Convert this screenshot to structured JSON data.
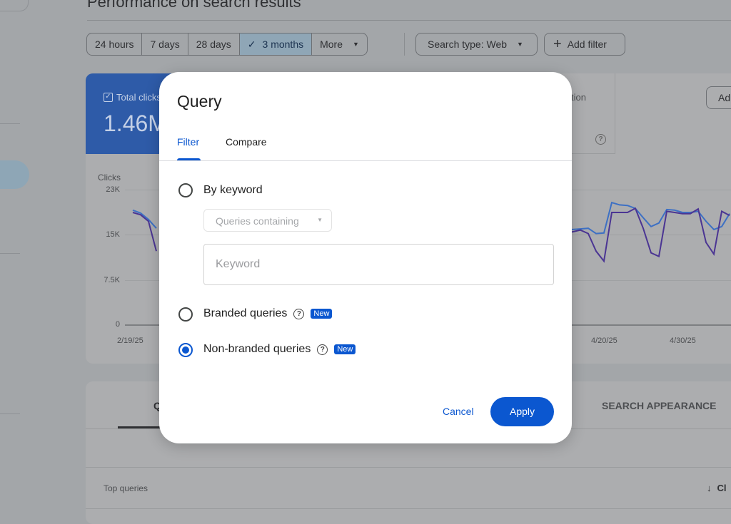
{
  "page": {
    "title": "Performance on search results"
  },
  "date_range": {
    "options": [
      "24 hours",
      "7 days",
      "28 days",
      "3 months",
      "More"
    ],
    "selected": "3 months"
  },
  "search_type": "Search type: Web",
  "add_filter": "Add filter",
  "metrics": {
    "total_clicks_label": "Total clicks",
    "total_clicks_value": "1.46M",
    "position_label_partial": "tion",
    "right_button_partial": "Ad"
  },
  "chart_data": {
    "type": "line",
    "ylabel": "Clicks",
    "yticks": [
      "23K",
      "15K",
      "7.5K",
      "0"
    ],
    "ylim": [
      0,
      23000
    ],
    "xticks": [
      "2/19/25",
      "4/20/25",
      "4/30/25"
    ],
    "grid": true,
    "series": [
      {
        "color": "#3d70c4",
        "points": [
          [
            "2025-02-19",
            19500
          ],
          [
            "2025-02-20",
            19000
          ],
          [
            "2025-02-21",
            17900
          ],
          [
            "2025-02-22",
            16400
          ],
          null,
          [
            "2025-04-15",
            15900
          ],
          [
            "2025-04-16",
            16200
          ],
          [
            "2025-04-17",
            16300
          ],
          [
            "2025-04-18",
            16400
          ],
          [
            "2025-04-19",
            15500
          ],
          [
            "2025-04-20",
            15600
          ],
          [
            "2025-04-21",
            20800
          ],
          [
            "2025-04-22",
            20400
          ],
          [
            "2025-04-23",
            20300
          ],
          [
            "2025-04-24",
            19800
          ],
          [
            "2025-04-25",
            18200
          ],
          [
            "2025-04-26",
            16700
          ],
          [
            "2025-04-27",
            17300
          ],
          [
            "2025-04-28",
            19600
          ],
          [
            "2025-04-29",
            19500
          ],
          [
            "2025-04-30",
            19100
          ],
          [
            "2025-05-01",
            19100
          ],
          [
            "2025-05-02",
            19300
          ],
          [
            "2025-05-03",
            17600
          ],
          [
            "2025-05-04",
            16200
          ],
          [
            "2025-05-05",
            16700
          ],
          [
            "2025-05-06",
            18900
          ]
        ]
      },
      {
        "color": "#4b3593",
        "points": [
          [
            "2025-02-19",
            19100
          ],
          [
            "2025-02-20",
            18700
          ],
          [
            "2025-02-21",
            17600
          ],
          [
            "2025-02-22",
            12500
          ],
          null,
          [
            "2025-04-15",
            15800
          ],
          [
            "2025-04-16",
            15800
          ],
          [
            "2025-04-17",
            16100
          ],
          [
            "2025-04-18",
            15500
          ],
          [
            "2025-04-19",
            12500
          ],
          [
            "2025-04-20",
            10800
          ],
          [
            "2025-04-21",
            19100
          ],
          [
            "2025-04-22",
            19100
          ],
          [
            "2025-04-23",
            19100
          ],
          [
            "2025-04-24",
            19800
          ],
          [
            "2025-04-25",
            16400
          ],
          [
            "2025-04-26",
            12200
          ],
          [
            "2025-04-27",
            11600
          ],
          [
            "2025-04-28",
            19300
          ],
          [
            "2025-04-29",
            19100
          ],
          [
            "2025-04-30",
            18900
          ],
          [
            "2025-05-01",
            18900
          ],
          [
            "2025-05-02",
            19700
          ],
          [
            "2025-05-03",
            14000
          ],
          [
            "2025-05-04",
            12000
          ],
          [
            "2025-05-05",
            19300
          ],
          [
            "2025-05-06",
            18600
          ]
        ]
      }
    ]
  },
  "table": {
    "tab_partial": "Q",
    "tab_search_appearance": "SEARCH APPEARANCE",
    "top_queries": "Top queries",
    "sort_partial": "Cl"
  },
  "dialog": {
    "title": "Query",
    "tabs": [
      "Filter",
      "Compare"
    ],
    "active_tab": "Filter",
    "by_keyword": "By keyword",
    "match_select": "Queries containing",
    "keyword_placeholder": "Keyword",
    "branded": "Branded queries",
    "non_branded": "Non-branded queries",
    "new_badge": "New",
    "selected_option": "Non-branded queries",
    "cancel": "Cancel",
    "apply": "Apply"
  },
  "colors": {
    "accent": "#0b57d0"
  }
}
